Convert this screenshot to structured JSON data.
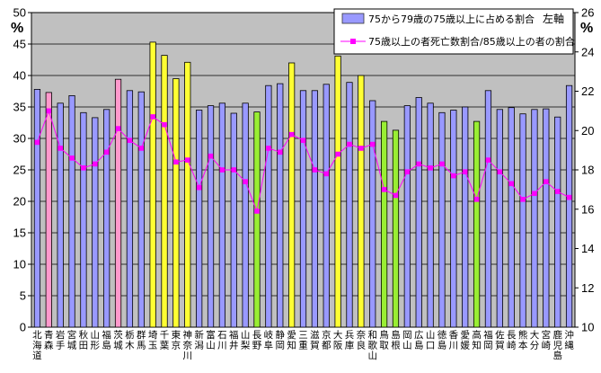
{
  "chart_data": {
    "type": "bar+line",
    "title": "",
    "categories": [
      "北海道",
      "青森",
      "岩手",
      "宮城",
      "秋田",
      "山形",
      "福島",
      "茨城",
      "栃木",
      "群馬",
      "埼玉",
      "千葉",
      "東京",
      "神奈川",
      "新潟",
      "富山",
      "石川",
      "福井",
      "山梨",
      "長野",
      "岐阜",
      "静岡",
      "愛知",
      "三重",
      "滋賀",
      "京都",
      "大阪",
      "兵庫",
      "奈良",
      "和歌山",
      "鳥取",
      "島根",
      "岡山",
      "広島",
      "山口",
      "徳島",
      "香川",
      "愛媛",
      "高知",
      "福岡",
      "佐賀",
      "長崎",
      "熊本",
      "大分",
      "宮崎",
      "鹿児島",
      "沖縄"
    ],
    "left_axis": {
      "unit": "%",
      "ylim": [
        0,
        50
      ],
      "ticks": [
        "0",
        "5",
        "10",
        "15",
        "20",
        "25",
        "30",
        "35",
        "40",
        "45",
        "50"
      ]
    },
    "right_axis": {
      "unit": "%",
      "ylim": [
        10,
        26
      ],
      "ticks": [
        "10",
        "12",
        "14",
        "16",
        "18",
        "20",
        "22",
        "24",
        "26"
      ]
    },
    "series": [
      {
        "name": "75から79歳の75歳以上に占める割合",
        "type": "bar",
        "axis": "left",
        "values": [
          37.8,
          37.3,
          35.6,
          36.8,
          34.1,
          33.3,
          34.6,
          39.4,
          37.6,
          37.4,
          45.3,
          43.2,
          39.5,
          42.1,
          34.5,
          35.2,
          35.6,
          34.0,
          35.6,
          34.2,
          38.4,
          38.7,
          42.0,
          37.6,
          37.6,
          38.6,
          43.1,
          38.9,
          40.0,
          36.0,
          32.7,
          31.3,
          35.2,
          36.5,
          35.6,
          34.1,
          34.5,
          35.0,
          32.7,
          37.6,
          34.6,
          34.9,
          33.9,
          34.6,
          34.7,
          33.4,
          38.4
        ]
      },
      {
        "name": "75歳以上の者死亡数割合/85歳以上の者の割合",
        "type": "line",
        "axis": "right",
        "values": [
          19.4,
          21.0,
          19.1,
          18.6,
          18.1,
          18.3,
          18.9,
          20.1,
          19.5,
          19.1,
          20.7,
          20.3,
          18.4,
          18.5,
          17.1,
          18.7,
          18.0,
          18.0,
          17.4,
          15.9,
          19.1,
          18.9,
          19.8,
          19.5,
          18.0,
          17.8,
          18.8,
          19.3,
          19.1,
          19.3,
          17.0,
          16.7,
          17.9,
          18.3,
          18.1,
          18.3,
          17.7,
          17.9,
          16.5,
          18.5,
          17.9,
          17.3,
          16.5,
          16.8,
          17.4,
          16.9,
          16.6
        ]
      }
    ],
    "bar_colors": {
      "default": "#9999ff",
      "pink": "#ff99cc",
      "yellow": "#ffff33",
      "green": "#99ee33"
    },
    "bar_color_keys": [
      "default",
      "pink",
      "default",
      "default",
      "default",
      "default",
      "default",
      "pink",
      "default",
      "default",
      "yellow",
      "yellow",
      "yellow",
      "yellow",
      "default",
      "default",
      "default",
      "default",
      "default",
      "green",
      "default",
      "default",
      "yellow",
      "default",
      "default",
      "default",
      "yellow",
      "default",
      "yellow",
      "default",
      "green",
      "green",
      "default",
      "default",
      "default",
      "default",
      "default",
      "default",
      "green",
      "default",
      "default",
      "default",
      "default",
      "default",
      "default",
      "default",
      "default"
    ],
    "line_color": "#ff00ff",
    "plot_background": "#c0c0c0",
    "grid": true,
    "legend_placement": "top-right",
    "left_axis_note": "左軸"
  }
}
